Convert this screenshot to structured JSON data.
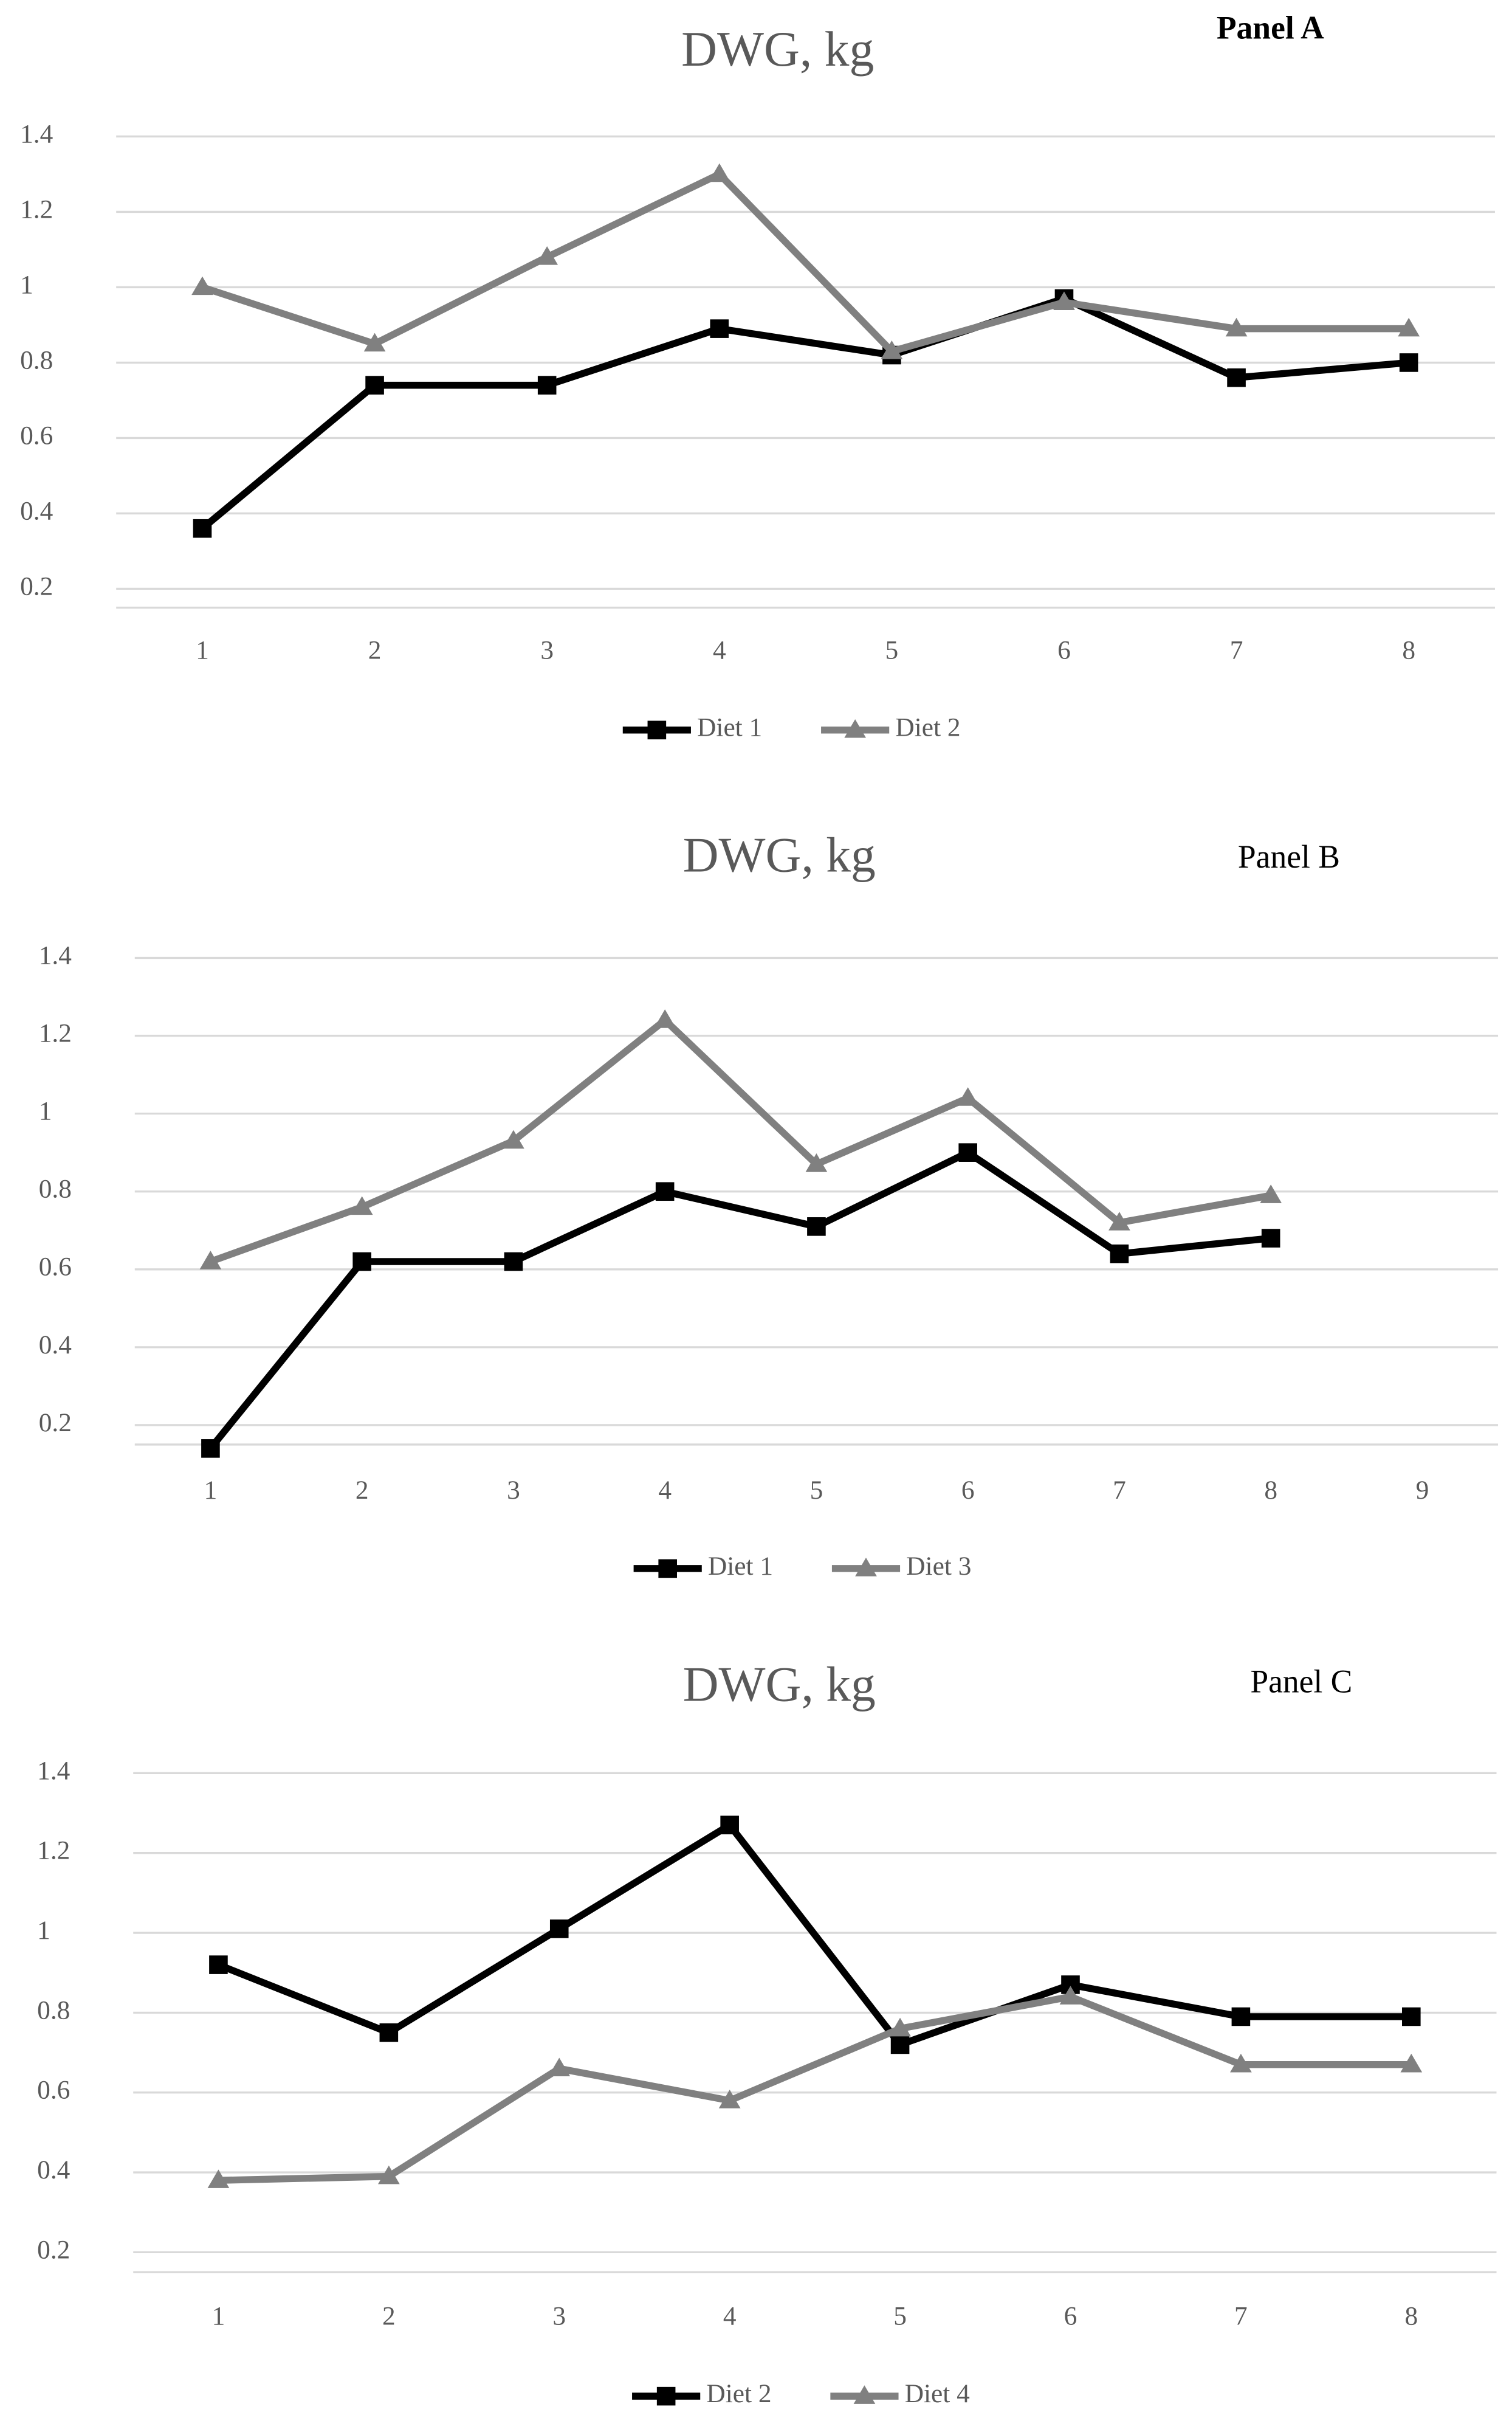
{
  "chart_data": [
    {
      "type": "line",
      "title": "DWG, kg",
      "panel_label": "Panel A",
      "panel_bold": true,
      "categories": [
        "1",
        "2",
        "3",
        "4",
        "5",
        "6",
        "7",
        "8"
      ],
      "series": [
        {
          "name": "Diet 1",
          "color": "#000000",
          "marker": "square",
          "values": [
            0.36,
            0.74,
            0.74,
            0.89,
            0.82,
            0.97,
            0.76,
            0.8
          ]
        },
        {
          "name": "Diet 2",
          "color": "#808080",
          "marker": "triangle",
          "values": [
            1.0,
            0.85,
            1.08,
            1.3,
            0.83,
            0.96,
            0.89,
            0.89
          ]
        }
      ],
      "ylim": [
        0.15,
        1.4
      ],
      "yticks": [
        0.2,
        0.4,
        0.6,
        0.8,
        1,
        1.2,
        1.4
      ],
      "grid": true
    },
    {
      "type": "line",
      "title": "DWG, kg",
      "panel_label": "Panel B",
      "panel_bold": false,
      "categories": [
        "1",
        "2",
        "3",
        "4",
        "5",
        "6",
        "7",
        "8",
        "9"
      ],
      "series": [
        {
          "name": "Diet 1",
          "color": "#000000",
          "marker": "square",
          "values": [
            0.14,
            0.62,
            0.62,
            0.8,
            0.71,
            0.9,
            0.64,
            0.68,
            null
          ]
        },
        {
          "name": "Diet 3",
          "color": "#808080",
          "marker": "triangle",
          "values": [
            0.62,
            0.76,
            0.93,
            1.24,
            0.87,
            1.04,
            0.72,
            0.79,
            null
          ]
        }
      ],
      "ylim": [
        0.15,
        1.4
      ],
      "yticks": [
        0.2,
        0.4,
        0.6,
        0.8,
        1,
        1.2,
        1.4
      ],
      "grid": true
    },
    {
      "type": "line",
      "title": "DWG, kg",
      "panel_label": "Panel C",
      "panel_bold": false,
      "categories": [
        "1",
        "2",
        "3",
        "4",
        "5",
        "6",
        "7",
        "8"
      ],
      "series": [
        {
          "name": "Diet 2",
          "color": "#000000",
          "marker": "square",
          "values": [
            0.92,
            0.75,
            1.01,
            1.27,
            0.72,
            0.87,
            0.79,
            0.79
          ]
        },
        {
          "name": "Diet 4",
          "color": "#808080",
          "marker": "triangle",
          "values": [
            0.38,
            0.39,
            0.66,
            0.58,
            0.76,
            0.84,
            0.67,
            0.67
          ]
        }
      ],
      "ylim": [
        0.15,
        1.4
      ],
      "yticks": [
        0.2,
        0.4,
        0.6,
        0.8,
        1,
        1.2,
        1.4
      ],
      "grid": true
    }
  ]
}
